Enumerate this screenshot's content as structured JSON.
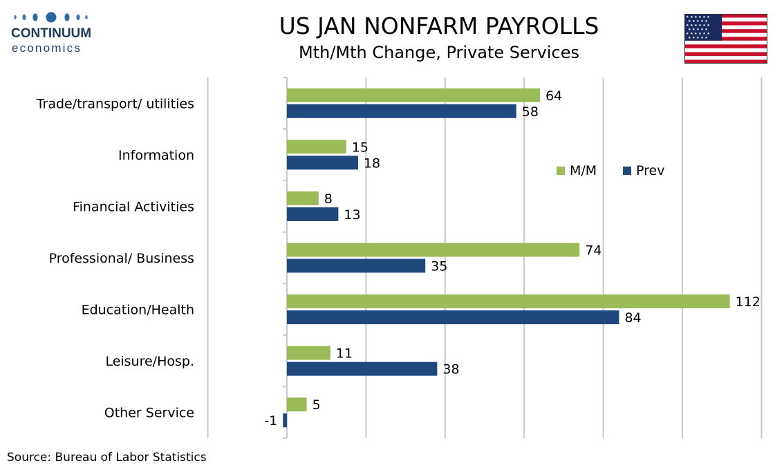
{
  "header": {
    "title": "US JAN NONFARM PAYROLLS",
    "subtitle": "Mth/Mth Change, Private Services"
  },
  "logo": {
    "name": "CONTINUUM",
    "sub": "economics",
    "color": "#1f3b5a"
  },
  "flag": {
    "icon": "us-flag-icon"
  },
  "footer": {
    "source": "Source: Bureau of Labor Statistics"
  },
  "chart_data": {
    "type": "bar",
    "orientation": "horizontal",
    "categories": [
      "Trade/transport/ utilities",
      "Information",
      "Financial Activities",
      "Professional/ Business",
      "Education/Health",
      "Leisure/Hosp.",
      "Other Service"
    ],
    "series": [
      {
        "name": "M/M",
        "color": "#9bbb59",
        "values": [
          64,
          15,
          8,
          74,
          112,
          11,
          5
        ]
      },
      {
        "name": "Prev",
        "color": "#1f497d",
        "values": [
          58,
          18,
          13,
          35,
          84,
          38,
          -1
        ]
      }
    ],
    "xlim": [
      -20,
      120
    ],
    "grid": true,
    "legend_position": "right-middle",
    "data_labels": true
  }
}
